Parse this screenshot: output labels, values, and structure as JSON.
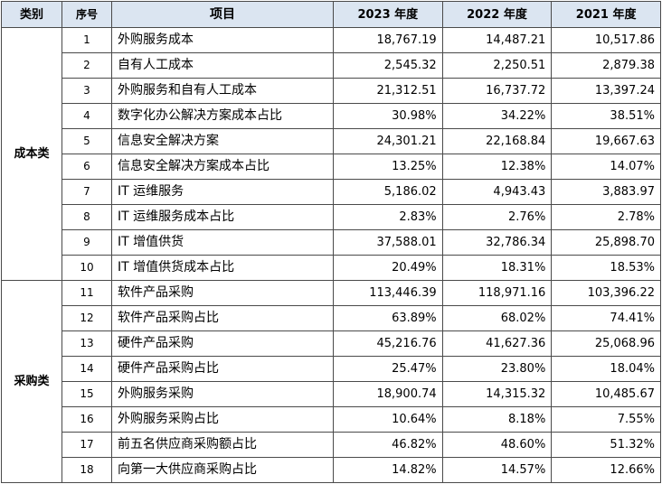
{
  "headers": [
    "类别",
    "序号",
    "项目",
    "2023 年度",
    "2022 年度",
    "2021 年度"
  ],
  "groups": [
    {
      "category": "成本类",
      "rows": [
        {
          "seq": "1",
          "item": "外购服务成本",
          "y2023": "18,767.19",
          "y2022": "14,487.21",
          "y2021": "10,517.86"
        },
        {
          "seq": "2",
          "item": "自有人工成本",
          "y2023": "2,545.32",
          "y2022": "2,250.51",
          "y2021": "2,879.38"
        },
        {
          "seq": "3",
          "item": "外购服务和自有人工成本",
          "y2023": "21,312.51",
          "y2022": "16,737.72",
          "y2021": "13,397.24"
        },
        {
          "seq": "4",
          "item": "数字化办公解决方案成本占比",
          "y2023": "30.98%",
          "y2022": "34.22%",
          "y2021": "38.51%"
        },
        {
          "seq": "5",
          "item": "信息安全解决方案",
          "y2023": "24,301.21",
          "y2022": "22,168.84",
          "y2021": "19,667.63"
        },
        {
          "seq": "6",
          "item": "信息安全解决方案成本占比",
          "y2023": "13.25%",
          "y2022": "12.38%",
          "y2021": "14.07%"
        },
        {
          "seq": "7",
          "item": "IT 运维服务",
          "y2023": "5,186.02",
          "y2022": "4,943.43",
          "y2021": "3,883.97"
        },
        {
          "seq": "8",
          "item": "IT 运维服务成本占比",
          "y2023": "2.83%",
          "y2022": "2.76%",
          "y2021": "2.78%"
        },
        {
          "seq": "9",
          "item": "IT 增值供货",
          "y2023": "37,588.01",
          "y2022": "32,786.34",
          "y2021": "25,898.70"
        },
        {
          "seq": "10",
          "item": "IT 增值供货成本占比",
          "y2023": "20.49%",
          "y2022": "18.31%",
          "y2021": "18.53%"
        }
      ]
    },
    {
      "category": "采购类",
      "rows": [
        {
          "seq": "11",
          "item": "软件产品采购",
          "y2023": "113,446.39",
          "y2022": "118,971.16",
          "y2021": "103,396.22"
        },
        {
          "seq": "12",
          "item": "软件产品采购占比",
          "y2023": "63.89%",
          "y2022": "68.02%",
          "y2021": "74.41%"
        },
        {
          "seq": "13",
          "item": "硬件产品采购",
          "y2023": "45,216.76",
          "y2022": "41,627.36",
          "y2021": "25,068.96"
        },
        {
          "seq": "14",
          "item": "硬件产品采购占比",
          "y2023": "25.47%",
          "y2022": "23.80%",
          "y2021": "18.04%"
        },
        {
          "seq": "15",
          "item": "外购服务采购",
          "y2023": "18,900.74",
          "y2022": "14,315.32",
          "y2021": "10,485.67"
        },
        {
          "seq": "16",
          "item": "外购服务采购占比",
          "y2023": "10.64%",
          "y2022": "8.18%",
          "y2021": "7.55%"
        },
        {
          "seq": "17",
          "item": "前五名供应商采购额占比",
          "y2023": "46.82%",
          "y2022": "48.60%",
          "y2021": "51.32%"
        },
        {
          "seq": "18",
          "item": "向第一大供应商采购占比",
          "y2023": "14.82%",
          "y2022": "14.57%",
          "y2021": "12.66%"
        }
      ]
    }
  ],
  "colors": {
    "header_bg": "#dbe5f1",
    "border": "#4a4a4a"
  }
}
